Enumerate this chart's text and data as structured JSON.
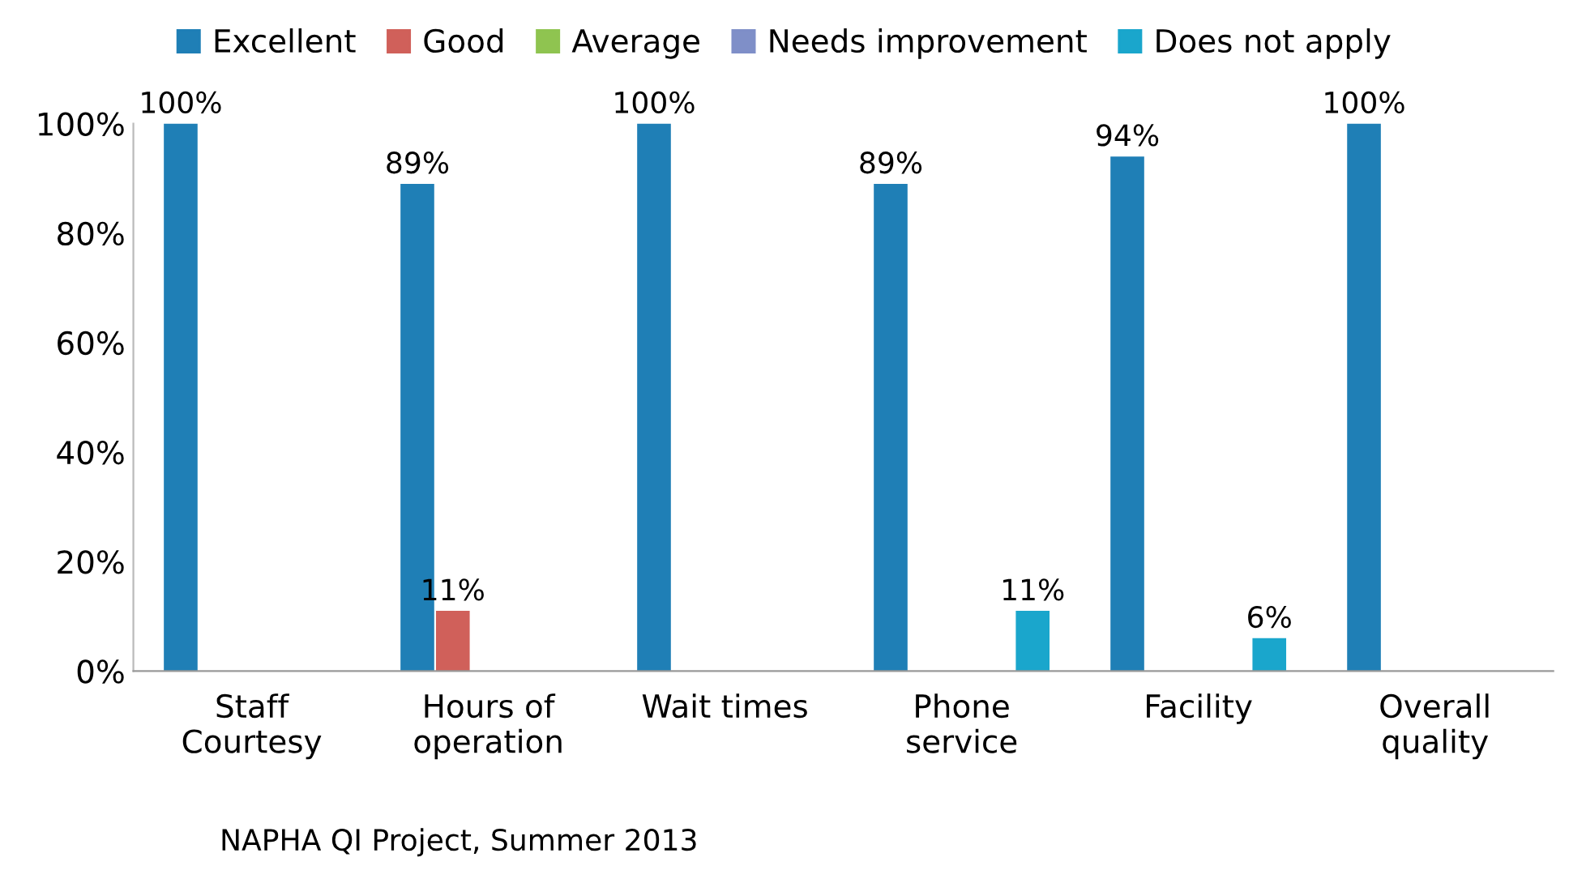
{
  "chart_data": {
    "type": "bar",
    "categories": [
      "Staff\nCourtesy",
      "Hours of\noperation",
      "Wait times",
      "Phone\nservice",
      "Facility",
      "Overall\nquality"
    ],
    "series": [
      {
        "name": "Excellent",
        "color": "#1f7fb6",
        "values": [
          100,
          89,
          100,
          89,
          94,
          100
        ],
        "value_labels": [
          "100%",
          "89%",
          "100%",
          "89%",
          "94%",
          "100%"
        ]
      },
      {
        "name": "Good",
        "color": "#d0605a",
        "values": [
          0,
          11,
          0,
          0,
          0,
          0
        ],
        "value_labels": [
          null,
          "11%",
          null,
          null,
          null,
          null
        ]
      },
      {
        "name": "Average",
        "color": "#8fc450",
        "values": [
          0,
          0,
          0,
          0,
          0,
          0
        ],
        "value_labels": [
          null,
          null,
          null,
          null,
          null,
          null
        ]
      },
      {
        "name": "Needs improvement",
        "color": "#7f8fc8",
        "values": [
          0,
          0,
          0,
          0,
          0,
          0
        ],
        "value_labels": [
          null,
          null,
          null,
          null,
          null,
          null
        ]
      },
      {
        "name": "Does not apply",
        "color": "#1aa6cc",
        "values": [
          0,
          0,
          0,
          11,
          6,
          0
        ],
        "value_labels": [
          null,
          null,
          null,
          "11%",
          "6%",
          null
        ]
      }
    ],
    "ylim": [
      0,
      100
    ],
    "yticks": [
      {
        "value": 0,
        "label": "0%"
      },
      {
        "value": 20,
        "label": "20%"
      },
      {
        "value": 40,
        "label": "40%"
      },
      {
        "value": 60,
        "label": "60%"
      },
      {
        "value": 80,
        "label": "80%"
      },
      {
        "value": 100,
        "label": "100%"
      }
    ],
    "legend": "top",
    "grid": false,
    "annotations": [
      "NAPHA QI Project, Summer 2013"
    ]
  }
}
